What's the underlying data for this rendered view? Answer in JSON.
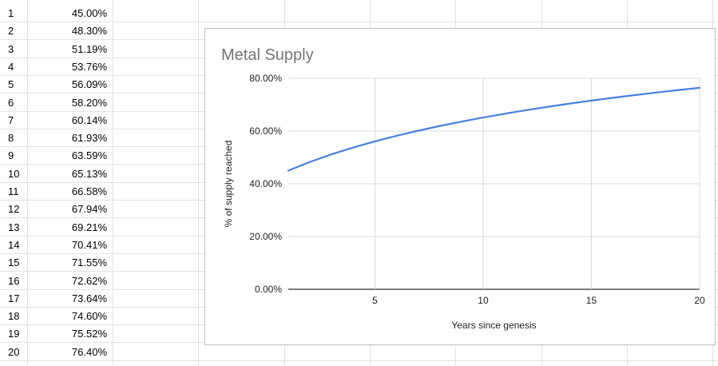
{
  "sheet": {
    "rows": [
      {
        "index": "1",
        "value": "45.00%"
      },
      {
        "index": "2",
        "value": "48.30%"
      },
      {
        "index": "3",
        "value": "51.19%"
      },
      {
        "index": "4",
        "value": "53.76%"
      },
      {
        "index": "5",
        "value": "56.09%"
      },
      {
        "index": "6",
        "value": "58.20%"
      },
      {
        "index": "7",
        "value": "60.14%"
      },
      {
        "index": "8",
        "value": "61.93%"
      },
      {
        "index": "9",
        "value": "63.59%"
      },
      {
        "index": "10",
        "value": "65.13%"
      },
      {
        "index": "11",
        "value": "66.58%"
      },
      {
        "index": "12",
        "value": "67.94%"
      },
      {
        "index": "13",
        "value": "69.21%"
      },
      {
        "index": "14",
        "value": "70.41%"
      },
      {
        "index": "15",
        "value": "71.55%"
      },
      {
        "index": "16",
        "value": "72.62%"
      },
      {
        "index": "17",
        "value": "73.64%"
      },
      {
        "index": "18",
        "value": "74.60%"
      },
      {
        "index": "19",
        "value": "75.52%"
      },
      {
        "index": "20",
        "value": "76.40%"
      }
    ]
  },
  "chart_data": {
    "type": "line",
    "title": "Metal Supply",
    "xlabel": "Years since genesis",
    "ylabel": "% of supply reached",
    "x": [
      1,
      2,
      3,
      4,
      5,
      6,
      7,
      8,
      9,
      10,
      11,
      12,
      13,
      14,
      15,
      16,
      17,
      18,
      19,
      20
    ],
    "series": [
      {
        "values": [
          45.0,
          48.3,
          51.19,
          53.76,
          56.09,
          58.2,
          60.14,
          61.93,
          63.59,
          65.13,
          66.58,
          67.94,
          69.21,
          70.41,
          71.55,
          72.62,
          73.64,
          74.6,
          75.52,
          76.4
        ]
      }
    ],
    "xlim": [
      1,
      20
    ],
    "ylim": [
      0,
      80
    ],
    "xticks": [
      5,
      10,
      15,
      20
    ],
    "yticks": [
      0,
      20,
      40,
      60,
      80
    ],
    "ytick_labels": [
      "0.00%",
      "20.00%",
      "40.00%",
      "60.00%",
      "80.00%"
    ],
    "xtick_labels": [
      "5",
      "10",
      "15",
      "20"
    ],
    "grid": true,
    "legend": "none",
    "colors": {
      "line": "#4a7fde",
      "grid": "#d9d9d9",
      "title": "#757575",
      "axis": "#333333"
    }
  }
}
